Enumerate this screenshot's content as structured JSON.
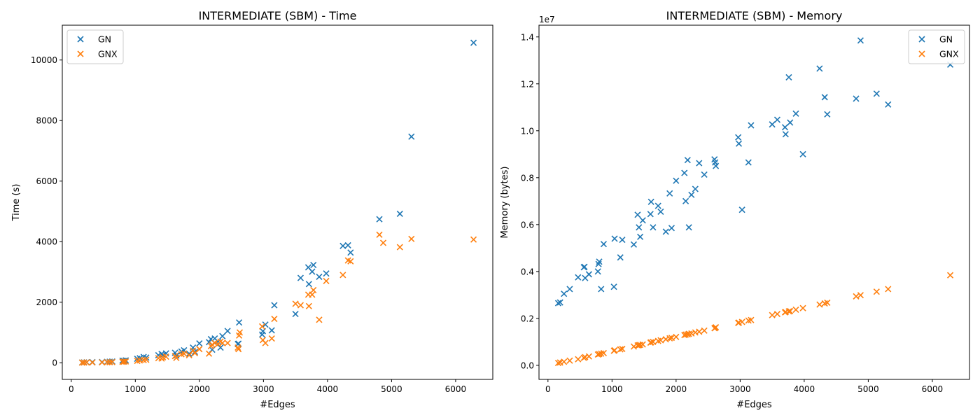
{
  "chart_data": [
    {
      "type": "scatter",
      "title": "INTERMEDIATE (SBM) - Time",
      "xlabel": "#Edges",
      "ylabel": "Time (s)",
      "xlim": [
        -140,
        6580
      ],
      "ylim": [
        -550,
        11150
      ],
      "xticks": [
        0,
        1000,
        2000,
        3000,
        4000,
        5000,
        6000
      ],
      "xtick_labels": [
        "0",
        "1000",
        "2000",
        "3000",
        "4000",
        "5000",
        "6000"
      ],
      "yticks": [
        0,
        2000,
        4000,
        6000,
        8000,
        10000
      ],
      "ytick_labels": [
        "0",
        "2000",
        "4000",
        "6000",
        "8000",
        "10000"
      ],
      "grid": false,
      "legend": "top-left",
      "series": [
        {
          "name": "GN",
          "color": "#1f77b4",
          "marker": "x",
          "points": [
            [
              170,
              10
            ],
            [
              200,
              12
            ],
            [
              240,
              15
            ],
            [
              330,
              20
            ],
            [
              480,
              25
            ],
            [
              560,
              30
            ],
            [
              600,
              35
            ],
            [
              640,
              40
            ],
            [
              800,
              70
            ],
            [
              820,
              60
            ],
            [
              850,
              80
            ],
            [
              1030,
              130
            ],
            [
              1070,
              150
            ],
            [
              1130,
              190
            ],
            [
              1170,
              170
            ],
            [
              1360,
              250
            ],
            [
              1410,
              290
            ],
            [
              1430,
              260
            ],
            [
              1480,
              310
            ],
            [
              1620,
              330
            ],
            [
              1640,
              240
            ],
            [
              1720,
              370
            ],
            [
              1760,
              410
            ],
            [
              1840,
              300
            ],
            [
              1900,
              500
            ],
            [
              1930,
              360
            ],
            [
              2000,
              640
            ],
            [
              2150,
              680
            ],
            [
              2180,
              780
            ],
            [
              2200,
              430
            ],
            [
              2240,
              800
            ],
            [
              2290,
              700
            ],
            [
              2330,
              500
            ],
            [
              2360,
              880
            ],
            [
              2440,
              1050
            ],
            [
              2600,
              620
            ],
            [
              2610,
              630
            ],
            [
              2620,
              1330
            ],
            [
              2980,
              930
            ],
            [
              2990,
              1040
            ],
            [
              3030,
              1260
            ],
            [
              3130,
              1070
            ],
            [
              3170,
              1900
            ],
            [
              3500,
              1610
            ],
            [
              3580,
              2800
            ],
            [
              3700,
              3150
            ],
            [
              3710,
              2600
            ],
            [
              3760,
              3010
            ],
            [
              3780,
              3230
            ],
            [
              3870,
              2840
            ],
            [
              3980,
              2950
            ],
            [
              4240,
              3860
            ],
            [
              4320,
              3880
            ],
            [
              4360,
              3640
            ],
            [
              4810,
              4740
            ],
            [
              5130,
              4920
            ],
            [
              5310,
              7470
            ],
            [
              6280,
              10570
            ]
          ]
        },
        {
          "name": "GNX",
          "color": "#ff7f0e",
          "marker": "x",
          "points": [
            [
              170,
              5
            ],
            [
              200,
              6
            ],
            [
              240,
              8
            ],
            [
              330,
              10
            ],
            [
              480,
              12
            ],
            [
              560,
              15
            ],
            [
              600,
              18
            ],
            [
              640,
              20
            ],
            [
              800,
              30
            ],
            [
              820,
              35
            ],
            [
              850,
              40
            ],
            [
              1030,
              60
            ],
            [
              1070,
              80
            ],
            [
              1130,
              90
            ],
            [
              1170,
              100
            ],
            [
              1360,
              150
            ],
            [
              1410,
              140
            ],
            [
              1430,
              180
            ],
            [
              1480,
              200
            ],
            [
              1620,
              220
            ],
            [
              1640,
              160
            ],
            [
              1720,
              280
            ],
            [
              1760,
              300
            ],
            [
              1840,
              250
            ],
            [
              1900,
              400
            ],
            [
              1930,
              320
            ],
            [
              2000,
              450
            ],
            [
              2150,
              300
            ],
            [
              2180,
              550
            ],
            [
              2200,
              600
            ],
            [
              2240,
              650
            ],
            [
              2290,
              620
            ],
            [
              2330,
              700
            ],
            [
              2360,
              650
            ],
            [
              2440,
              650
            ],
            [
              2600,
              500
            ],
            [
              2610,
              450
            ],
            [
              2620,
              900
            ],
            [
              2630,
              1000
            ],
            [
              2980,
              1200
            ],
            [
              2990,
              750
            ],
            [
              3030,
              650
            ],
            [
              3130,
              800
            ],
            [
              3170,
              1450
            ],
            [
              3500,
              1950
            ],
            [
              3580,
              1900
            ],
            [
              3700,
              2250
            ],
            [
              3710,
              1870
            ],
            [
              3760,
              2250
            ],
            [
              3780,
              2400
            ],
            [
              3870,
              1420
            ],
            [
              3980,
              2700
            ],
            [
              4240,
              2900
            ],
            [
              4320,
              3380
            ],
            [
              4360,
              3350
            ],
            [
              4810,
              4230
            ],
            [
              4870,
              3960
            ],
            [
              5130,
              3820
            ],
            [
              5310,
              4090
            ],
            [
              6280,
              4070
            ]
          ]
        }
      ]
    },
    {
      "type": "scatter",
      "title": "INTERMEDIATE (SBM) - Memory",
      "xlabel": "#Edges",
      "ylabel": "Memory (bytes)",
      "offset_label": "1e7",
      "xlim": [
        -140,
        6580
      ],
      "ylim": [
        -600000,
        14500000
      ],
      "xticks": [
        0,
        1000,
        2000,
        3000,
        4000,
        5000,
        6000
      ],
      "xtick_labels": [
        "0",
        "1000",
        "2000",
        "3000",
        "4000",
        "5000",
        "6000"
      ],
      "yticks": [
        0,
        2000000,
        4000000,
        6000000,
        8000000,
        10000000,
        12000000,
        14000000
      ],
      "ytick_labels": [
        "0.0",
        "0.2",
        "0.4",
        "0.6",
        "0.8",
        "1.0",
        "1.2",
        "1.4"
      ],
      "grid": false,
      "legend": "top-right",
      "series": [
        {
          "name": "GN",
          "color": "#1f77b4",
          "marker": "x",
          "points": [
            [
              160,
              2650000
            ],
            [
              190,
              2680000
            ],
            [
              250,
              3050000
            ],
            [
              340,
              3250000
            ],
            [
              470,
              3750000
            ],
            [
              560,
              4180000
            ],
            [
              570,
              4200000
            ],
            [
              580,
              3720000
            ],
            [
              640,
              3880000
            ],
            [
              780,
              4000000
            ],
            [
              790,
              4320000
            ],
            [
              800,
              4420000
            ],
            [
              830,
              3250000
            ],
            [
              870,
              5170000
            ],
            [
              1030,
              3350000
            ],
            [
              1040,
              5400000
            ],
            [
              1130,
              4600000
            ],
            [
              1160,
              5350000
            ],
            [
              1340,
              5150000
            ],
            [
              1400,
              6420000
            ],
            [
              1420,
              5880000
            ],
            [
              1440,
              5480000
            ],
            [
              1480,
              6180000
            ],
            [
              1600,
              6450000
            ],
            [
              1610,
              6970000
            ],
            [
              1640,
              5880000
            ],
            [
              1720,
              6800000
            ],
            [
              1760,
              6550000
            ],
            [
              1840,
              5700000
            ],
            [
              1900,
              7330000
            ],
            [
              1930,
              5850000
            ],
            [
              2000,
              7870000
            ],
            [
              2130,
              8200000
            ],
            [
              2150,
              7000000
            ],
            [
              2180,
              8750000
            ],
            [
              2200,
              5880000
            ],
            [
              2240,
              7270000
            ],
            [
              2300,
              7520000
            ],
            [
              2360,
              8620000
            ],
            [
              2440,
              8130000
            ],
            [
              2600,
              8780000
            ],
            [
              2610,
              8650000
            ],
            [
              2620,
              8500000
            ],
            [
              2970,
              9720000
            ],
            [
              2980,
              9450000
            ],
            [
              3030,
              6630000
            ],
            [
              3130,
              8650000
            ],
            [
              3170,
              10230000
            ],
            [
              3500,
              10270000
            ],
            [
              3580,
              10470000
            ],
            [
              3700,
              10150000
            ],
            [
              3710,
              9850000
            ],
            [
              3760,
              12280000
            ],
            [
              3780,
              10350000
            ],
            [
              3870,
              10730000
            ],
            [
              3980,
              9000000
            ],
            [
              4240,
              12650000
            ],
            [
              4320,
              11430000
            ],
            [
              4360,
              10700000
            ],
            [
              4810,
              11370000
            ],
            [
              4880,
              13850000
            ],
            [
              5130,
              11580000
            ],
            [
              5310,
              11120000
            ],
            [
              6280,
              12820000
            ]
          ]
        },
        {
          "name": "GNX",
          "color": "#ff7f0e",
          "marker": "x",
          "points": [
            [
              160,
              100000
            ],
            [
              190,
              120000
            ],
            [
              250,
              150000
            ],
            [
              340,
              200000
            ],
            [
              470,
              260000
            ],
            [
              560,
              320000
            ],
            [
              580,
              350000
            ],
            [
              640,
              380000
            ],
            [
              780,
              460000
            ],
            [
              800,
              480000
            ],
            [
              830,
              500000
            ],
            [
              870,
              520000
            ],
            [
              1030,
              620000
            ],
            [
              1040,
              640000
            ],
            [
              1130,
              680000
            ],
            [
              1160,
              700000
            ],
            [
              1340,
              800000
            ],
            [
              1400,
              850000
            ],
            [
              1420,
              860000
            ],
            [
              1440,
              870000
            ],
            [
              1480,
              890000
            ],
            [
              1600,
              970000
            ],
            [
              1610,
              980000
            ],
            [
              1640,
              1000000
            ],
            [
              1720,
              1040000
            ],
            [
              1760,
              1070000
            ],
            [
              1840,
              1110000
            ],
            [
              1900,
              1150000
            ],
            [
              1930,
              1170000
            ],
            [
              2000,
              1210000
            ],
            [
              2130,
              1290000
            ],
            [
              2150,
              1310000
            ],
            [
              2180,
              1320000
            ],
            [
              2200,
              1340000
            ],
            [
              2240,
              1360000
            ],
            [
              2300,
              1400000
            ],
            [
              2360,
              1430000
            ],
            [
              2440,
              1480000
            ],
            [
              2600,
              1580000
            ],
            [
              2610,
              1600000
            ],
            [
              2620,
              1620000
            ],
            [
              2970,
              1810000
            ],
            [
              2980,
              1820000
            ],
            [
              3030,
              1850000
            ],
            [
              3130,
              1910000
            ],
            [
              3170,
              1930000
            ],
            [
              3500,
              2140000
            ],
            [
              3580,
              2190000
            ],
            [
              3700,
              2260000
            ],
            [
              3710,
              2270000
            ],
            [
              3760,
              2300000
            ],
            [
              3780,
              2310000
            ],
            [
              3870,
              2370000
            ],
            [
              3980,
              2440000
            ],
            [
              4240,
              2590000
            ],
            [
              4320,
              2640000
            ],
            [
              4360,
              2670000
            ],
            [
              4810,
              2940000
            ],
            [
              4880,
              2990000
            ],
            [
              5130,
              3140000
            ],
            [
              5310,
              3250000
            ],
            [
              6280,
              3840000
            ]
          ]
        }
      ]
    }
  ]
}
